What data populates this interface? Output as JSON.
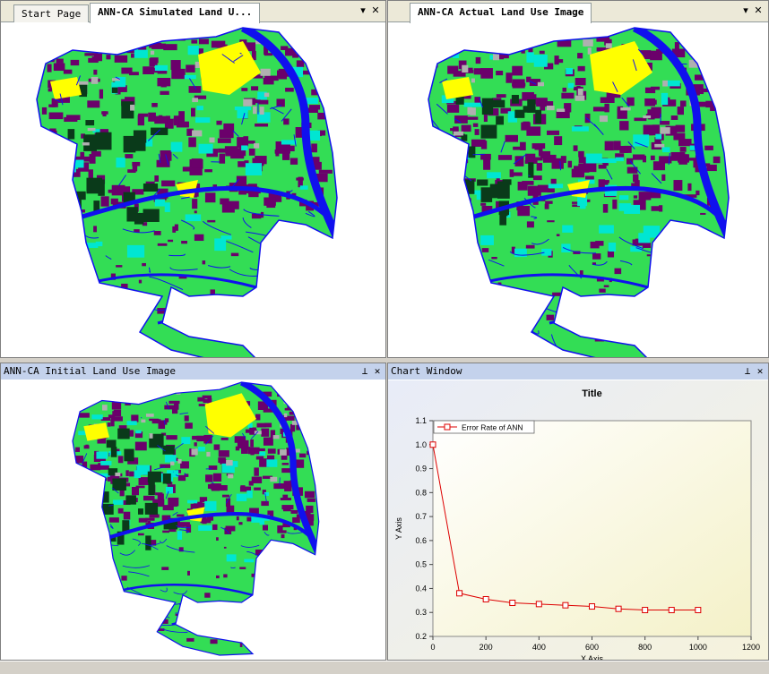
{
  "tabs_left": [
    "Start Page",
    "ANN-CA Simulated Land U..."
  ],
  "tabs_right": [
    "ANN-CA Actual Land Use Image"
  ],
  "pane_bottom_left": {
    "title": "ANN-CA Initial Land Use Image"
  },
  "pane_bottom_right": {
    "title": "Chart Window"
  },
  "icons": {
    "dropdown": "▾",
    "close": "✕",
    "pin": "⊥"
  },
  "colors": {
    "urban": "#6b006b",
    "farmland": "#33dd55",
    "water": "#1010ee",
    "orchard": "#00e6d2",
    "forest": "#0a3a1a",
    "bare": "#ffff00",
    "other": "#b0b0b0"
  },
  "chart_data": {
    "type": "line",
    "title": "Title",
    "xlabel": "X Axis",
    "ylabel": "Y Axis",
    "xlim": [
      0,
      1200
    ],
    "ylim": [
      0.2,
      1.1
    ],
    "xticks": [
      0,
      200,
      400,
      600,
      800,
      1000,
      1200
    ],
    "yticks": [
      0.2,
      0.3,
      0.4,
      0.5,
      0.6,
      0.7,
      0.8,
      0.9,
      1.0,
      1.1
    ],
    "legend_position": "top-left",
    "series": [
      {
        "name": "Error Rate of ANN",
        "color": "#dd0000",
        "x": [
          0,
          100,
          200,
          300,
          400,
          500,
          600,
          700,
          800,
          900,
          1000
        ],
        "y": [
          1.0,
          0.38,
          0.355,
          0.34,
          0.335,
          0.33,
          0.325,
          0.315,
          0.31,
          0.31,
          0.31
        ]
      }
    ]
  }
}
